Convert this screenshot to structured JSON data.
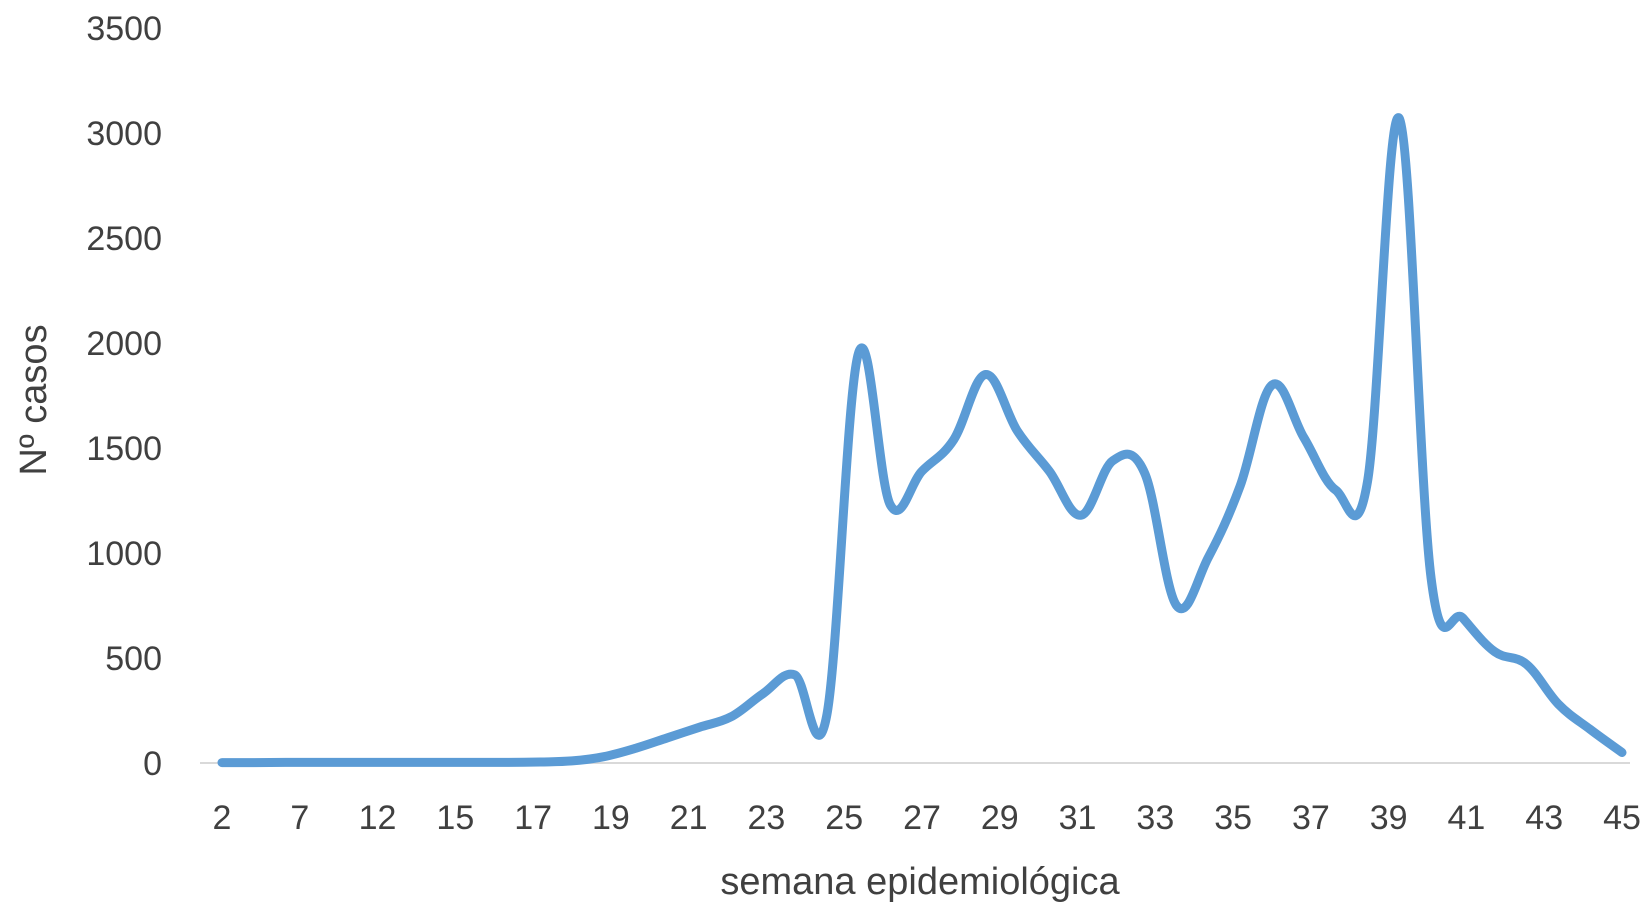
{
  "chart_data": {
    "type": "line",
    "title": "",
    "xlabel": "semana epidemiológica",
    "ylabel": "Nº casos",
    "ylim": [
      0,
      3500
    ],
    "yticks": [
      0,
      500,
      1000,
      1500,
      2000,
      2500,
      3000,
      3500
    ],
    "x_tick_labels": [
      "2",
      "7",
      "12",
      "15",
      "17",
      "19",
      "21",
      "23",
      "25",
      "27",
      "29",
      "31",
      "33",
      "35",
      "37",
      "39",
      "41",
      "43",
      "45"
    ],
    "grid": false,
    "legend": "none",
    "series_color": "#5b9bd5",
    "series": [
      {
        "values": [
          2,
          2,
          3,
          3,
          3,
          3,
          3,
          3,
          3,
          3,
          5,
          10,
          30,
          70,
          120,
          170,
          220,
          330,
          420,
          220,
          1950,
          1230,
          1390,
          1540,
          1850,
          1580,
          1390,
          1180,
          1440,
          1380,
          750,
          980,
          1320,
          1800,
          1550,
          1300,
          1340,
          3070,
          880,
          690,
          530,
          470,
          280,
          160,
          50
        ]
      }
    ]
  }
}
